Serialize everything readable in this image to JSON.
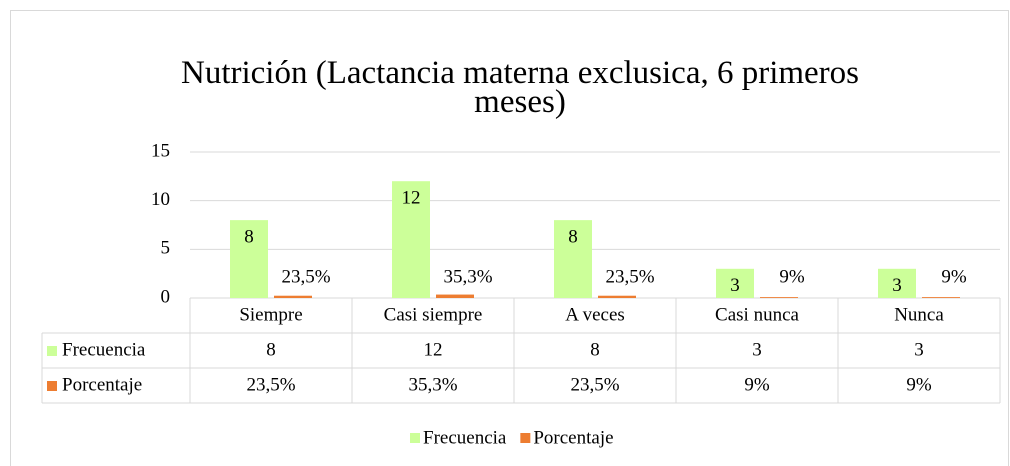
{
  "chart_data": {
    "type": "bar",
    "title": "Nutrición (Lactancia materna exclusica, 6 primeros meses)",
    "categories": [
      "Siempre",
      "Casi siempre",
      "A veces",
      "Casi nunca",
      "Nunca"
    ],
    "series": [
      {
        "name": "Frecuencia",
        "color": "#ccff99",
        "values": [
          8,
          12,
          8,
          3,
          3
        ]
      },
      {
        "name": "Porcentaje",
        "color": "#ed7d31",
        "values": [
          0.235,
          0.353,
          0.235,
          0.09,
          0.09
        ],
        "value_labels": [
          "23,5%",
          "35,3%",
          "23,5%",
          "9%",
          "9%"
        ]
      }
    ],
    "ylim": [
      0,
      15
    ],
    "yticks": [
      0,
      5,
      10,
      15
    ],
    "grid": true,
    "legend": "bottom"
  }
}
